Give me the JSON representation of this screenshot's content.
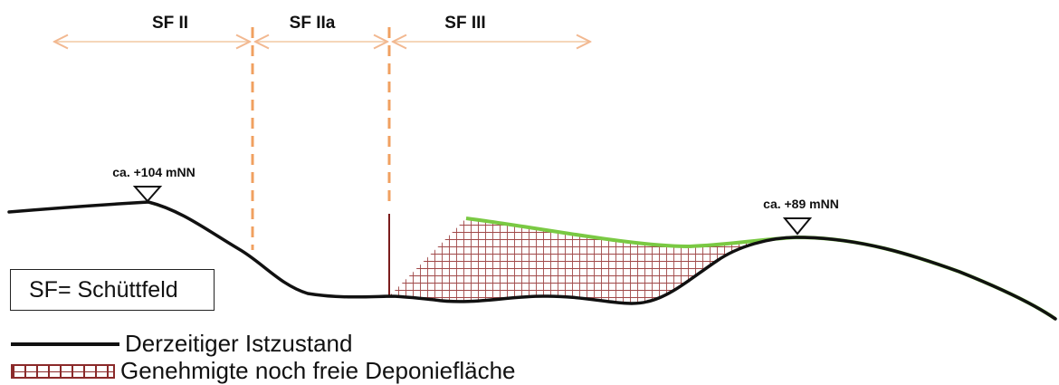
{
  "zones": {
    "sf2": "SF II",
    "sf2a": "SF IIa",
    "sf3": "SF III"
  },
  "elevations": {
    "left": "ca. +104 mNN",
    "right": "ca. +89 mNN"
  },
  "legend": {
    "abbreviation": "SF= Schüttfeld",
    "current_state": "Derzeitiger Istzustand",
    "approved_free_area": "Genehmigte noch freie Deponiefläche"
  },
  "colors": {
    "terrain": "#111111",
    "zone_arrow": "#f2c8a4",
    "zone_divider": "#f0a060",
    "planned_surface": "#7ac943",
    "fill_hatch": "#8b2a2a"
  }
}
